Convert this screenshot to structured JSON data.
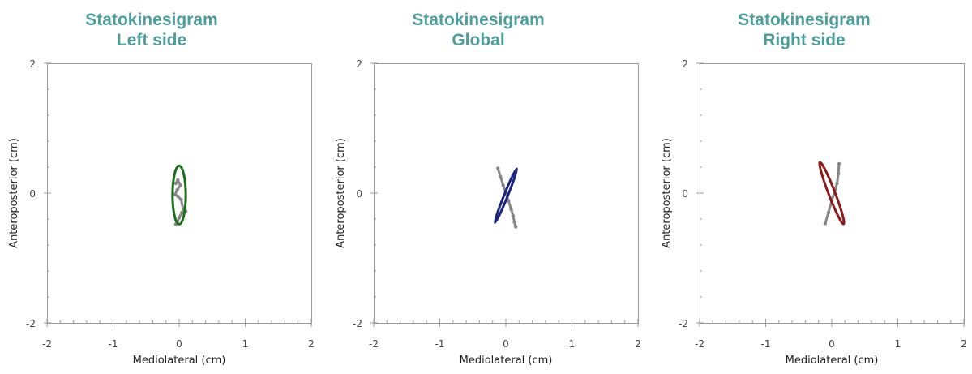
{
  "chart_data": [
    {
      "type": "scatter",
      "panel": "left",
      "title_lines": [
        "Statokinesigram",
        "Left side"
      ],
      "xlabel": "Mediolateral (cm)",
      "ylabel": "Anteroposterior (cm)",
      "xlim": [
        -2,
        2
      ],
      "ylim": [
        -2,
        2
      ],
      "xticks": [
        "-2",
        "-1",
        "0",
        "1",
        "2"
      ],
      "yticks": [
        "-2",
        "0",
        "2"
      ],
      "grid": false,
      "path_color": "#888888",
      "ellipse_color": "#1a6e1a",
      "path": [
        [
          -0.05,
          0.15
        ],
        [
          -0.02,
          0.2
        ],
        [
          0.02,
          0.12
        ],
        [
          -0.03,
          0.05
        ],
        [
          -0.06,
          -0.02
        ],
        [
          -0.02,
          -0.05
        ],
        [
          0.03,
          -0.1
        ],
        [
          0.06,
          -0.25
        ],
        [
          0.1,
          -0.28
        ],
        [
          0.04,
          -0.3
        ],
        [
          0.0,
          -0.38
        ],
        [
          -0.03,
          -0.45
        ],
        [
          -0.05,
          -0.48
        ]
      ],
      "ellipse": {
        "cx": 0.0,
        "cy": -0.03,
        "rx": 0.1,
        "ry": 0.45,
        "angle_deg": 0
      }
    },
    {
      "type": "scatter",
      "panel": "global",
      "title_lines": [
        "Statokinesigram",
        "Global"
      ],
      "xlabel": "Mediolateral (cm)",
      "ylabel": "Anteroposterior (cm)",
      "xlim": [
        -2,
        2
      ],
      "ylim": [
        -2,
        2
      ],
      "xticks": [
        "-2",
        "-1",
        "0",
        "1",
        "2"
      ],
      "yticks": [
        "-2",
        "0",
        "2"
      ],
      "grid": false,
      "path_color": "#888888",
      "ellipse_color": "#1a237e",
      "path": [
        [
          -0.12,
          0.38
        ],
        [
          -0.08,
          0.25
        ],
        [
          -0.04,
          0.12
        ],
        [
          0.0,
          0.0
        ],
        [
          0.04,
          -0.12
        ],
        [
          0.08,
          -0.25
        ],
        [
          0.11,
          -0.35
        ],
        [
          0.13,
          -0.45
        ],
        [
          0.15,
          -0.52
        ]
      ],
      "ellipse": {
        "cx": 0.0,
        "cy": -0.04,
        "rx": 0.44,
        "ry": 0.028,
        "angle_deg": -68
      }
    },
    {
      "type": "scatter",
      "panel": "right",
      "title_lines": [
        "Statokinesigram",
        "Right side"
      ],
      "xlabel": "Mediolateral (cm)",
      "ylabel": "Anteroposterior (cm)",
      "xlim": [
        -2,
        2
      ],
      "ylim": [
        -2,
        2
      ],
      "xticks": [
        "-2",
        "-1",
        "0",
        "1",
        "2"
      ],
      "yticks": [
        "-2",
        "0",
        "2"
      ],
      "grid": false,
      "path_color": "#888888",
      "ellipse_color": "#8b1a1a",
      "path": [
        [
          -0.1,
          -0.47
        ],
        [
          -0.05,
          -0.3
        ],
        [
          0.0,
          -0.12
        ],
        [
          0.05,
          0.05
        ],
        [
          0.08,
          0.15
        ],
        [
          0.1,
          0.3
        ],
        [
          0.11,
          0.45
        ]
      ],
      "ellipse": {
        "cx": 0.0,
        "cy": 0.0,
        "rx": 0.5,
        "ry": 0.05,
        "angle_deg": 69
      }
    }
  ]
}
